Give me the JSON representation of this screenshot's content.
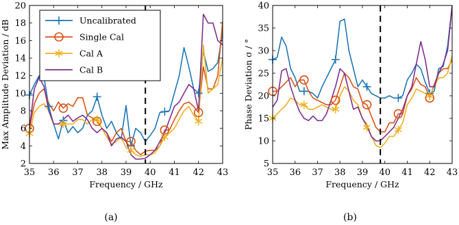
{
  "chart_data": [
    {
      "type": "line",
      "caption": "(a)",
      "xlabel": "Frequency / GHz",
      "ylabel": "Max Amplitude Deviation / dB",
      "xlim": [
        35,
        43
      ],
      "ylim": [
        2,
        20
      ],
      "xticks": [
        35,
        36,
        37,
        38,
        39,
        40,
        41,
        42,
        43
      ],
      "yticks": [
        2,
        4,
        6,
        8,
        10,
        12,
        14,
        16,
        18,
        20
      ],
      "vline": 39.8,
      "legend_position": "top-left",
      "series": [
        {
          "name": "Uncalibrated",
          "color": "#1f77b4",
          "marker": "plus",
          "x": [
            35,
            35.2,
            35.4,
            35.6,
            35.8,
            36.0,
            36.2,
            36.4,
            36.6,
            36.8,
            37.0,
            37.2,
            37.4,
            37.6,
            37.8,
            38.0,
            38.2,
            38.4,
            38.6,
            38.8,
            39.0,
            39.2,
            39.4,
            39.6,
            39.8,
            40.0,
            40.2,
            40.4,
            40.6,
            40.8,
            41.0,
            41.2,
            41.4,
            41.6,
            41.8,
            42.0,
            42.2,
            42.4,
            42.6,
            42.8,
            43.0
          ],
          "y": [
            9.8,
            11.0,
            12.0,
            11.8,
            8.5,
            6.5,
            4.8,
            6.9,
            5.5,
            6.2,
            5.5,
            6.0,
            7.5,
            8.0,
            9.6,
            7.5,
            6.0,
            6.8,
            5.5,
            4.8,
            8.6,
            4.0,
            6.0,
            5.5,
            4.5,
            5.2,
            6.0,
            7.8,
            7.9,
            8.0,
            10.0,
            12.0,
            15.2,
            13.0,
            10.5,
            10.0,
            14.8,
            12.5,
            12.8,
            13.5,
            17.0
          ],
          "marker_x": [
            35.0,
            35.8,
            36.4,
            37.8,
            39.2,
            40.6,
            42.0
          ]
        },
        {
          "name": "Single Cal",
          "color": "#d95319",
          "marker": "circle",
          "x": [
            35,
            35.2,
            35.4,
            35.6,
            35.8,
            36.0,
            36.2,
            36.4,
            36.6,
            36.8,
            37.0,
            37.2,
            37.4,
            37.6,
            37.8,
            38.0,
            38.2,
            38.4,
            38.6,
            38.8,
            39.0,
            39.2,
            39.4,
            39.6,
            39.8,
            40.0,
            40.2,
            40.4,
            40.6,
            40.8,
            41.0,
            41.2,
            41.4,
            41.6,
            41.8,
            42.0,
            42.2,
            42.4,
            42.6,
            42.8,
            43.0
          ],
          "y": [
            6.0,
            8.8,
            10.0,
            10.5,
            8.8,
            8.0,
            9.0,
            8.3,
            8.8,
            8.5,
            9.5,
            9.5,
            7.5,
            7.2,
            6.8,
            6.0,
            5.5,
            4.5,
            5.5,
            6.0,
            4.5,
            4.5,
            3.5,
            3.0,
            3.4,
            3.5,
            3.5,
            4.0,
            5.8,
            5.8,
            7.0,
            8.0,
            8.8,
            9.0,
            8.5,
            7.8,
            13.0,
            10.5,
            10.5,
            12.0,
            18.2
          ],
          "marker_x": [
            35.0,
            36.4,
            37.8,
            39.2,
            40.6,
            42.0
          ]
        },
        {
          "name": "Cal A",
          "color": "#edb120",
          "marker": "asterisk",
          "x": [
            35,
            35.2,
            35.4,
            35.6,
            35.8,
            36.0,
            36.2,
            36.4,
            36.6,
            36.8,
            37.0,
            37.2,
            37.4,
            37.6,
            37.8,
            38.0,
            38.2,
            38.4,
            38.6,
            38.8,
            39.0,
            39.2,
            39.4,
            39.6,
            39.8,
            40.0,
            40.2,
            40.4,
            40.6,
            40.8,
            41.0,
            41.2,
            41.4,
            41.6,
            41.8,
            42.0,
            42.2,
            42.4,
            42.6,
            42.8,
            43.0
          ],
          "y": [
            5.4,
            7.8,
            8.5,
            8.8,
            8.0,
            6.5,
            6.5,
            6.5,
            6.5,
            6.5,
            7.0,
            7.0,
            6.5,
            7.0,
            7.0,
            6.0,
            5.0,
            4.2,
            4.5,
            5.0,
            3.8,
            3.5,
            3.0,
            2.8,
            3.0,
            3.0,
            3.2,
            4.0,
            5.0,
            5.5,
            6.0,
            7.0,
            8.0,
            8.5,
            7.5,
            6.8,
            15.5,
            10.0,
            10.5,
            11.0,
            14.0
          ],
          "marker_x": [
            35.0,
            36.4,
            37.8,
            39.2,
            40.6,
            42.0
          ]
        },
        {
          "name": "Cal B",
          "color": "#7e2f8e",
          "marker": "none",
          "x": [
            35,
            35.2,
            35.4,
            35.6,
            35.8,
            36.0,
            36.2,
            36.4,
            36.6,
            36.8,
            37.0,
            37.2,
            37.4,
            37.6,
            37.8,
            38.0,
            38.2,
            38.4,
            38.6,
            38.8,
            39.0,
            39.2,
            39.4,
            39.6,
            39.8,
            40.0,
            40.2,
            40.4,
            40.6,
            40.8,
            41.0,
            41.2,
            41.4,
            41.6,
            41.8,
            42.0,
            42.2,
            42.4,
            42.6,
            42.8,
            43.0
          ],
          "y": [
            6.0,
            10.5,
            11.8,
            10.8,
            8.0,
            6.5,
            6.5,
            7.0,
            7.5,
            6.8,
            7.2,
            7.5,
            7.0,
            6.0,
            5.5,
            6.0,
            5.5,
            4.0,
            4.8,
            5.0,
            4.5,
            3.0,
            2.5,
            2.5,
            2.6,
            3.0,
            3.5,
            4.5,
            5.5,
            7.0,
            8.5,
            9.0,
            10.0,
            11.0,
            10.5,
            8.0,
            19.0,
            18.0,
            18.0,
            16.0,
            15.5
          ],
          "marker_x": []
        }
      ]
    },
    {
      "type": "line",
      "caption": "(b)",
      "xlabel": "Frequency / GHz",
      "ylabel": "Phase Deviation σ / °",
      "xlim": [
        35,
        43
      ],
      "ylim": [
        5,
        40
      ],
      "xticks": [
        35,
        36,
        37,
        38,
        39,
        40,
        41,
        42,
        43
      ],
      "yticks": [
        5,
        10,
        15,
        20,
        25,
        30,
        35,
        40
      ],
      "vline": 39.8,
      "legend_position": "none",
      "series": [
        {
          "name": "Uncalibrated",
          "color": "#1f77b4",
          "marker": "plus",
          "x": [
            35,
            35.2,
            35.4,
            35.6,
            35.8,
            36.0,
            36.2,
            36.4,
            36.6,
            36.8,
            37.0,
            37.2,
            37.4,
            37.6,
            37.8,
            38.0,
            38.2,
            38.4,
            38.6,
            38.8,
            39.0,
            39.2,
            39.4,
            39.6,
            39.8,
            40.0,
            40.2,
            40.4,
            40.6,
            40.8,
            41.0,
            41.2,
            41.4,
            41.6,
            41.8,
            42.0,
            42.2,
            42.4,
            42.6,
            42.8,
            43.0
          ],
          "y": [
            28.0,
            28.5,
            33.0,
            31.0,
            26.0,
            24.0,
            21.0,
            21.0,
            21.0,
            20.5,
            19.5,
            22.0,
            24.0,
            26.0,
            28.0,
            36.5,
            37.0,
            30.0,
            26.0,
            22.0,
            23.5,
            22.0,
            20.5,
            20.0,
            19.5,
            19.5,
            20.0,
            19.5,
            19.5,
            20.0,
            23.5,
            25.0,
            27.0,
            26.0,
            23.0,
            20.5,
            21.0,
            26.0,
            26.5,
            31.0,
            40.0
          ],
          "marker_x": [
            35.0,
            36.4,
            37.8,
            39.2,
            40.6,
            42.0
          ]
        },
        {
          "name": "Single Cal",
          "color": "#d95319",
          "marker": "circle",
          "x": [
            35,
            35.2,
            35.4,
            35.6,
            35.8,
            36.0,
            36.2,
            36.4,
            36.6,
            36.8,
            37.0,
            37.2,
            37.4,
            37.6,
            37.8,
            38.0,
            38.2,
            38.4,
            38.6,
            38.8,
            39.0,
            39.2,
            39.4,
            39.6,
            39.8,
            40.0,
            40.2,
            40.4,
            40.6,
            40.8,
            41.0,
            41.2,
            41.4,
            41.6,
            41.8,
            42.0,
            42.2,
            42.4,
            42.6,
            42.8,
            43.0
          ],
          "y": [
            21.0,
            21.0,
            22.0,
            23.0,
            24.0,
            22.0,
            23.5,
            23.5,
            21.0,
            19.5,
            19.0,
            18.5,
            18.0,
            18.0,
            19.0,
            22.0,
            25.0,
            24.0,
            22.0,
            21.5,
            18.5,
            18.0,
            15.5,
            13.0,
            12.0,
            12.0,
            14.0,
            14.0,
            16.0,
            16.0,
            20.0,
            21.5,
            24.0,
            22.5,
            22.0,
            19.5,
            22.5,
            25.0,
            26.0,
            26.0,
            28.0
          ],
          "marker_x": [
            35.0,
            36.4,
            37.8,
            39.2,
            40.6,
            42.0
          ]
        },
        {
          "name": "Cal A",
          "color": "#edb120",
          "marker": "asterisk",
          "x": [
            35,
            35.2,
            35.4,
            35.6,
            35.8,
            36.0,
            36.2,
            36.4,
            36.6,
            36.8,
            37.0,
            37.2,
            37.4,
            37.6,
            37.8,
            38.0,
            38.2,
            38.4,
            38.6,
            38.8,
            39.0,
            39.2,
            39.4,
            39.6,
            39.8,
            40.0,
            40.2,
            40.4,
            40.6,
            40.8,
            41.0,
            41.2,
            41.4,
            41.6,
            41.8,
            42.0,
            42.2,
            42.4,
            42.6,
            42.8,
            43.0
          ],
          "y": [
            15.0,
            16.0,
            17.0,
            18.0,
            19.5,
            19.0,
            18.0,
            18.0,
            17.0,
            17.0,
            17.5,
            18.0,
            17.5,
            17.0,
            17.0,
            20.0,
            22.0,
            21.0,
            19.0,
            18.0,
            15.0,
            13.0,
            11.0,
            9.0,
            8.5,
            9.5,
            11.0,
            11.0,
            12.5,
            14.0,
            18.0,
            19.5,
            21.5,
            21.0,
            20.5,
            20.0,
            22.0,
            24.0,
            24.0,
            25.0,
            29.0
          ],
          "marker_x": [
            35.0,
            36.4,
            37.8,
            39.2,
            40.6,
            42.0
          ]
        },
        {
          "name": "Cal B",
          "color": "#7e2f8e",
          "marker": "none",
          "x": [
            35,
            35.2,
            35.4,
            35.6,
            35.8,
            36.0,
            36.2,
            36.4,
            36.6,
            36.8,
            37.0,
            37.2,
            37.4,
            37.6,
            37.8,
            38.0,
            38.2,
            38.4,
            38.6,
            38.8,
            39.0,
            39.2,
            39.4,
            39.6,
            39.8,
            40.0,
            40.2,
            40.4,
            40.6,
            40.8,
            41.0,
            41.2,
            41.4,
            41.6,
            41.8,
            42.0,
            42.2,
            42.4,
            42.6,
            42.8,
            43.0
          ],
          "y": [
            17.5,
            19.0,
            25.5,
            26.0,
            22.0,
            19.0,
            16.5,
            15.0,
            14.5,
            15.5,
            14.5,
            14.5,
            16.0,
            19.0,
            22.0,
            26.0,
            25.0,
            21.0,
            17.0,
            17.5,
            15.0,
            13.5,
            11.0,
            10.0,
            10.0,
            11.0,
            12.0,
            13.0,
            15.0,
            17.0,
            20.0,
            22.0,
            27.0,
            32.0,
            28.0,
            22.0,
            22.0,
            25.0,
            27.0,
            30.0,
            40.0
          ],
          "marker_x": []
        }
      ]
    }
  ]
}
